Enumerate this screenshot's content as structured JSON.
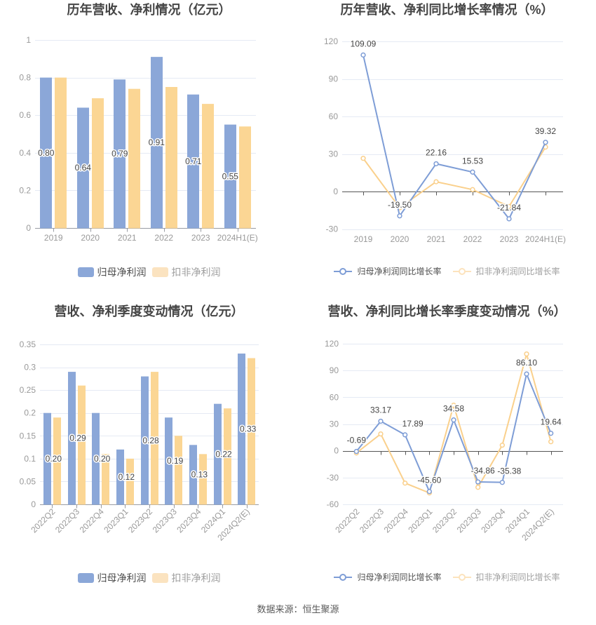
{
  "footer": {
    "source_text": "数据来源：恒生聚源"
  },
  "styles": {
    "title_color": "#454545",
    "axis_label_color": "#999999",
    "value_label_color": "#444444",
    "grid_color": "#E5EAF4",
    "bar_axis_color": "#999CA3",
    "line_axis_color": "#565656",
    "legend_text_color": "#4D4D4D",
    "legend_text_dim_color": "#9E9E9E"
  },
  "chart_data": [
    {
      "type": "bar",
      "title": "历年营收、净利情况（亿元）",
      "categories": [
        "2019",
        "2020",
        "2021",
        "2022",
        "2023",
        "2024H1(E)"
      ],
      "ylim": [
        0,
        1
      ],
      "yticks": [
        0,
        0.2,
        0.4,
        0.6,
        0.8,
        1
      ],
      "series": [
        {
          "name": "归母净利润",
          "color": "#8BA7D8",
          "legend_color": "#8BA7D8",
          "values": [
            0.8,
            0.64,
            0.79,
            0.91,
            0.71,
            0.55
          ],
          "show_labels": true
        },
        {
          "name": "扣非净利润",
          "color": "#FBD694",
          "legend_color": "#FBE3C0",
          "values": [
            0.8,
            0.69,
            0.74,
            0.75,
            0.66,
            0.54
          ],
          "show_labels": false
        }
      ]
    },
    {
      "type": "line",
      "title": "历年营收、净利同比增长率情况（%）",
      "categories": [
        "2019",
        "2020",
        "2021",
        "2022",
        "2023",
        "2024H1(E)"
      ],
      "ylim": [
        -30,
        120
      ],
      "yticks": [
        -30,
        0,
        30,
        60,
        90,
        120
      ],
      "series": [
        {
          "name": "归母净利润同比增长率",
          "color": "#7E9DD6",
          "legend_color": "#7E9DD6",
          "values": [
            109.09,
            -19.5,
            22.16,
            15.53,
            -21.84,
            39.32
          ],
          "show_labels": true
        },
        {
          "name": "扣非净利润同比增长率",
          "color": "#FAD08C",
          "legend_color": "#FCE3BD",
          "values": [
            26.5,
            -13,
            7.8,
            1.5,
            -12,
            35.5
          ],
          "show_labels": false
        }
      ]
    },
    {
      "type": "bar",
      "title": "营收、净利季度变动情况（亿元）",
      "categories": [
        "2022Q2",
        "2022Q3",
        "2022Q4",
        "2023Q1",
        "2023Q2",
        "2023Q3",
        "2023Q4",
        "2024Q1",
        "2024Q2(E)"
      ],
      "ylim": [
        0,
        0.35
      ],
      "yticks": [
        0,
        0.05,
        0.1,
        0.15,
        0.2,
        0.25,
        0.3,
        0.35
      ],
      "series": [
        {
          "name": "归母净利润",
          "color": "#8BA7D8",
          "legend_color": "#8BA7D8",
          "values": [
            0.2,
            0.29,
            0.2,
            0.12,
            0.28,
            0.19,
            0.13,
            0.22,
            0.33
          ],
          "show_labels": true
        },
        {
          "name": "扣非净利润",
          "color": "#FBD694",
          "legend_color": "#FBE3C0",
          "values": [
            0.19,
            0.26,
            0.11,
            0.1,
            0.29,
            0.15,
            0.11,
            0.21,
            0.32
          ],
          "show_labels": false
        }
      ]
    },
    {
      "type": "line",
      "title": "营收、净利同比增长率季度变动情况（%）",
      "categories": [
        "2022Q2",
        "2022Q3",
        "2022Q4",
        "2023Q1",
        "2023Q2",
        "2023Q3",
        "2023Q4",
        "2024Q1",
        "2024Q2(E)"
      ],
      "ylim": [
        -60,
        120
      ],
      "yticks": [
        -60,
        -30,
        0,
        30,
        60,
        90,
        120
      ],
      "series": [
        {
          "name": "归母净利润同比增长率",
          "color": "#7E9DD6",
          "legend_color": "#7E9DD6",
          "values": [
            -0.69,
            33.17,
            17.89,
            -45.6,
            34.58,
            -34.86,
            -35.38,
            86.1,
            19.64
          ],
          "show_labels": true
        },
        {
          "name": "扣非净利润同比增长率",
          "color": "#FAD08C",
          "legend_color": "#FCE3BD",
          "values": [
            -2.4,
            18.9,
            -36.2,
            -47.2,
            51.1,
            -40.9,
            6.3,
            108.5,
            10.2
          ],
          "show_labels": false
        }
      ]
    }
  ]
}
